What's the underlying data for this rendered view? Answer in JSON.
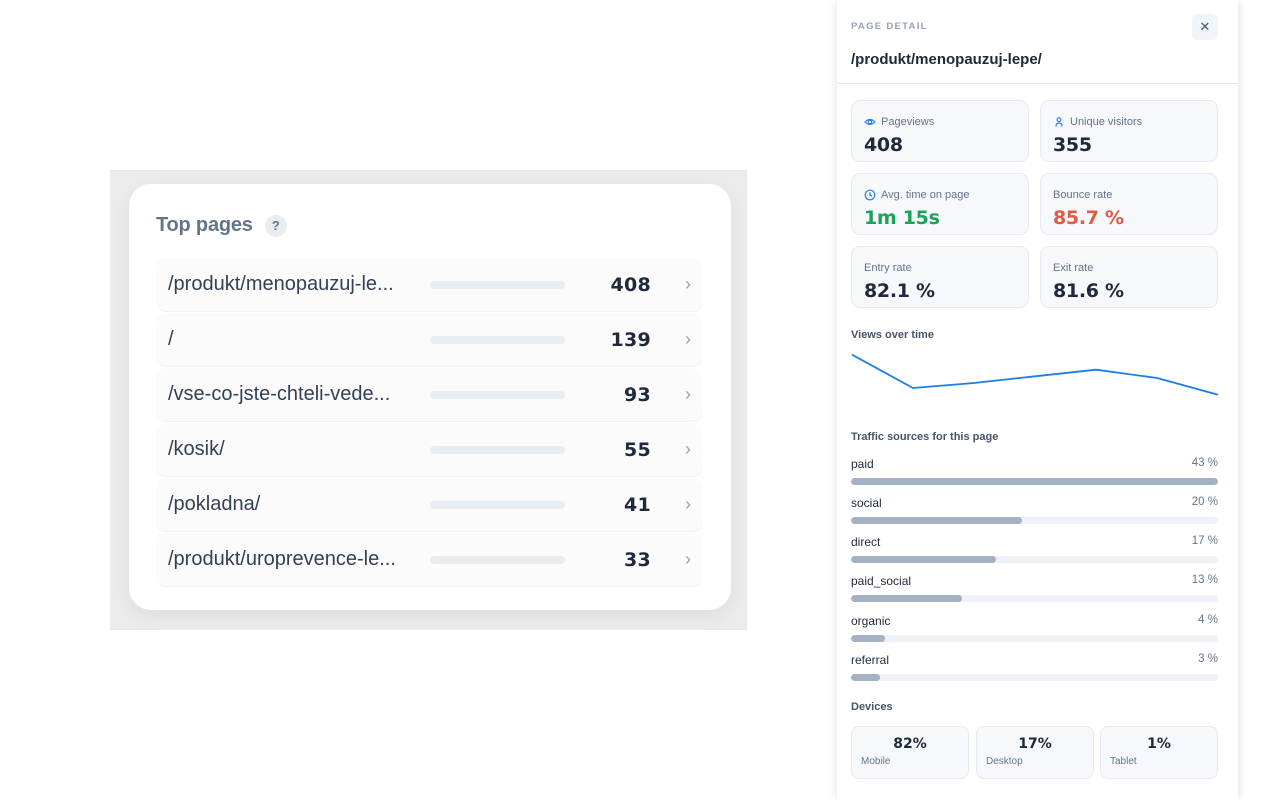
{
  "top_pages": {
    "title": "Top pages",
    "help": "?",
    "max": 408,
    "rows": [
      {
        "path": "/produkt/menopauzuj-le...",
        "value": "408",
        "n": 408
      },
      {
        "path": "/",
        "value": "139",
        "n": 139
      },
      {
        "path": "/vse-co-jste-chteli-vede...",
        "value": "93",
        "n": 93
      },
      {
        "path": "/kosik/",
        "value": "55",
        "n": 55
      },
      {
        "path": "/pokladna/",
        "value": "41",
        "n": 41
      },
      {
        "path": "/produkt/uroprevence-le...",
        "value": "33",
        "n": 33
      }
    ]
  },
  "detail": {
    "kicker": "PAGE DETAIL",
    "close": "✕",
    "title": "/produkt/menopauzuj-lepe/",
    "stats": [
      {
        "label": "Pageviews",
        "value": "408",
        "icon": "eye-icon",
        "color": "#1e293b"
      },
      {
        "label": "Unique visitors",
        "value": "355",
        "icon": "person-icon",
        "color": "#1e293b"
      },
      {
        "label": "Avg. time on page",
        "value": "1m 15s",
        "icon": "clock-icon",
        "color": "#1aa35a"
      },
      {
        "label": "Bounce rate",
        "value": "85.7 %",
        "icon": "",
        "color": "#e05a45"
      },
      {
        "label": "Entry rate",
        "value": "82.1 %",
        "icon": "",
        "color": "#1e293b"
      },
      {
        "label": "Exit rate",
        "value": "81.6 %",
        "icon": "",
        "color": "#1e293b"
      }
    ],
    "views_label": "Views over time",
    "views_series": [
      62,
      42,
      45,
      49,
      53,
      48,
      38
    ],
    "views_color": "#1d7fe6",
    "sources_label": "Traffic sources for this page",
    "sources": [
      {
        "name": "paid",
        "pct": "43 %",
        "v": 43
      },
      {
        "name": "social",
        "pct": "20 %",
        "v": 20
      },
      {
        "name": "direct",
        "pct": "17 %",
        "v": 17
      },
      {
        "name": "paid_social",
        "pct": "13 %",
        "v": 13
      },
      {
        "name": "organic",
        "pct": "4 %",
        "v": 4
      },
      {
        "name": "referral",
        "pct": "3 %",
        "v": 3
      }
    ],
    "devices_label": "Devices",
    "devices": [
      {
        "value": "82%",
        "label": "Mobile"
      },
      {
        "value": "17%",
        "label": "Desktop"
      },
      {
        "value": "1%",
        "label": "Tablet"
      }
    ]
  }
}
